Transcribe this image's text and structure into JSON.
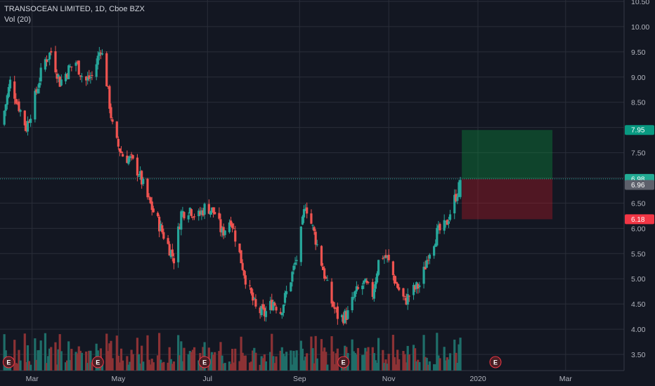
{
  "chart_data": {
    "type": "candlestick",
    "title": "TRANSOCEAN LIMITED, 1D, Cboe BZX",
    "volume_label": "Vol (20)",
    "ylim": [
      3.2,
      10.55
    ],
    "y_ticks": [
      "3.50",
      "4.00",
      "4.50",
      "5.00",
      "5.50",
      "6.00",
      "6.50",
      "7.00",
      "7.50",
      "8.00",
      "8.50",
      "9.00",
      "9.50",
      "10.00",
      "10.50"
    ],
    "x_ticks": [
      {
        "label": "Mar",
        "day": 33
      },
      {
        "label": "May",
        "day": 92
      },
      {
        "label": "Jul",
        "day": 153
      },
      {
        "label": "Sep",
        "day": 216
      },
      {
        "label": "Nov",
        "day": 277
      },
      {
        "label": "2020",
        "day": 338
      },
      {
        "label": "Mar",
        "day": 398
      }
    ],
    "x_domain_days": [
      12,
      438
    ],
    "price_anchors": [
      {
        "day": 12,
        "price": 8.05
      },
      {
        "day": 18,
        "price": 8.9
      },
      {
        "day": 23,
        "price": 8.5
      },
      {
        "day": 29,
        "price": 8.0
      },
      {
        "day": 35,
        "price": 8.6
      },
      {
        "day": 41,
        "price": 9.3
      },
      {
        "day": 46,
        "price": 9.5
      },
      {
        "day": 52,
        "price": 8.9
      },
      {
        "day": 58,
        "price": 9.15
      },
      {
        "day": 63,
        "price": 9.3
      },
      {
        "day": 69,
        "price": 8.9
      },
      {
        "day": 75,
        "price": 9.05
      },
      {
        "day": 80,
        "price": 9.6
      },
      {
        "day": 84,
        "price": 8.9
      },
      {
        "day": 89,
        "price": 7.8
      },
      {
        "day": 95,
        "price": 7.45
      },
      {
        "day": 101,
        "price": 7.35
      },
      {
        "day": 106,
        "price": 7.1
      },
      {
        "day": 112,
        "price": 6.6
      },
      {
        "day": 118,
        "price": 6.2
      },
      {
        "day": 124,
        "price": 5.8
      },
      {
        "day": 130,
        "price": 5.4
      },
      {
        "day": 135,
        "price": 6.3
      },
      {
        "day": 141,
        "price": 6.4
      },
      {
        "day": 146,
        "price": 6.2
      },
      {
        "day": 152,
        "price": 6.45
      },
      {
        "day": 158,
        "price": 6.3
      },
      {
        "day": 163,
        "price": 5.9
      },
      {
        "day": 169,
        "price": 6.2
      },
      {
        "day": 174,
        "price": 5.6
      },
      {
        "day": 180,
        "price": 4.9
      },
      {
        "day": 186,
        "price": 4.4
      },
      {
        "day": 192,
        "price": 4.3
      },
      {
        "day": 198,
        "price": 4.55
      },
      {
        "day": 203,
        "price": 4.35
      },
      {
        "day": 209,
        "price": 4.9
      },
      {
        "day": 215,
        "price": 5.5
      },
      {
        "day": 220,
        "price": 6.5
      },
      {
        "day": 226,
        "price": 5.9
      },
      {
        "day": 232,
        "price": 5.2
      },
      {
        "day": 237,
        "price": 4.6
      },
      {
        "day": 243,
        "price": 4.2
      },
      {
        "day": 249,
        "price": 4.3
      },
      {
        "day": 254,
        "price": 4.7
      },
      {
        "day": 260,
        "price": 4.9
      },
      {
        "day": 266,
        "price": 4.7
      },
      {
        "day": 271,
        "price": 5.5
      },
      {
        "day": 276,
        "price": 5.4
      },
      {
        "day": 282,
        "price": 4.9
      },
      {
        "day": 288,
        "price": 4.55
      },
      {
        "day": 293,
        "price": 4.75
      },
      {
        "day": 299,
        "price": 4.9
      },
      {
        "day": 304,
        "price": 5.5
      },
      {
        "day": 310,
        "price": 5.9
      },
      {
        "day": 316,
        "price": 6.05
      },
      {
        "day": 321,
        "price": 6.5
      },
      {
        "day": 327,
        "price": 6.96
      }
    ],
    "volume_profile": {
      "max_ratio": 0.32,
      "base": 0.1
    },
    "last_price_line": 6.98,
    "earnings_days": [
      17,
      78,
      151,
      246,
      350
    ],
    "earnings_marker": "E",
    "position": {
      "day_start": 327,
      "day_end": 389,
      "target": 7.95,
      "entry": 6.98,
      "stop": 6.18,
      "profit_color": "rgba(8,153,63,0.35)",
      "loss_color": "rgba(194,24,38,0.35)"
    },
    "price_badges": [
      {
        "value": "7.95",
        "price": 7.95,
        "bg": "#089981",
        "fg": "#ffffff"
      },
      {
        "value": "6.98",
        "price": 6.98,
        "bg": "#22ab94",
        "fg": "#ffffff"
      },
      {
        "value": "6.96",
        "price": 6.86,
        "bg": "#5d606b",
        "fg": "#ffffff"
      },
      {
        "value": "6.18",
        "price": 6.18,
        "bg": "#f23645",
        "fg": "#ffffff"
      }
    ],
    "colors": {
      "up": "#26a69a",
      "down": "#ef5350",
      "grid": "#2a2e39",
      "bg": "#131722",
      "vol_up": "#1f6e69",
      "vol_down": "#8c3235"
    }
  }
}
